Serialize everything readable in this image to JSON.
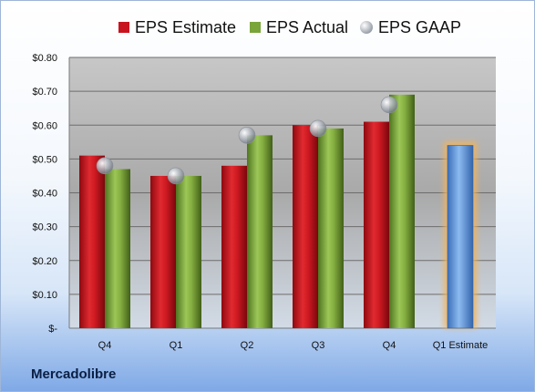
{
  "company": "Mercadolibre",
  "colors": {
    "estimate": "#c8141e",
    "actual": "#79a53a",
    "gaap": "#b9bec6",
    "forecast": "#5f9ce0",
    "forecast_glow": "#f2b35a"
  },
  "chart_data": {
    "type": "bar",
    "categories": [
      "Q4",
      "Q1",
      "Q2",
      "Q3",
      "Q4",
      "Q1 Estimate"
    ],
    "series": [
      {
        "name": "EPS Estimate",
        "values": [
          0.51,
          0.45,
          0.48,
          0.6,
          0.61,
          0.54
        ]
      },
      {
        "name": "EPS Actual",
        "values": [
          0.47,
          0.45,
          0.57,
          0.59,
          0.69,
          null
        ]
      },
      {
        "name": "EPS GAAP",
        "values": [
          0.48,
          0.45,
          0.57,
          0.59,
          0.66,
          null
        ]
      }
    ],
    "y_ticks": [
      "$-",
      "$0.10",
      "$0.20",
      "$0.30",
      "$0.40",
      "$0.50",
      "$0.60",
      "$0.70",
      "$0.80"
    ],
    "ylim": [
      0,
      0.8
    ],
    "grid": true,
    "legend": "top"
  }
}
